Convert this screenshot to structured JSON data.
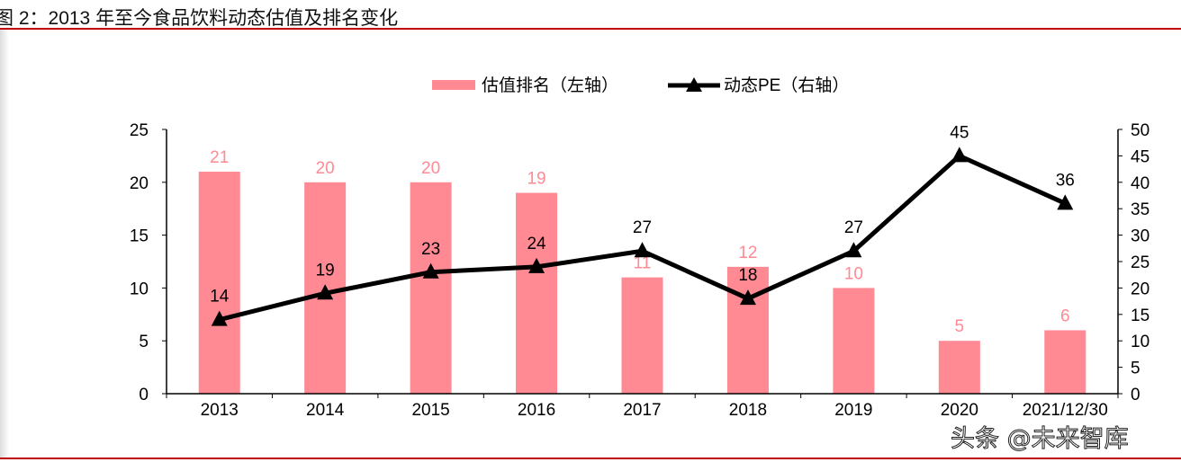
{
  "title": "图 2：2013 年至今食品饮料动态估值及排名变化",
  "watermark": "头条 @未来智库",
  "chart_data": {
    "type": "bar+line",
    "categories": [
      "2013",
      "2014",
      "2015",
      "2016",
      "2017",
      "2018",
      "2019",
      "2020",
      "2021/12/30"
    ],
    "series": [
      {
        "name": "估值排名（左轴）",
        "type": "bar",
        "axis": "left",
        "color": "#ff8a94",
        "values": [
          21,
          20,
          20,
          19,
          11,
          12,
          10,
          5,
          6
        ]
      },
      {
        "name": "动态PE（右轴）",
        "type": "line",
        "axis": "right",
        "color": "#000000",
        "marker": "triangle",
        "values": [
          14,
          19,
          23,
          24,
          27,
          18,
          27,
          45,
          36
        ]
      }
    ],
    "y_left": {
      "range": [
        0,
        25
      ],
      "ticks": [
        0,
        5,
        10,
        15,
        20,
        25
      ]
    },
    "y_right": {
      "range": [
        0,
        50
      ],
      "ticks": [
        0,
        5,
        10,
        15,
        20,
        25,
        30,
        35,
        40,
        45,
        50
      ]
    },
    "legend": "top",
    "grid": false
  }
}
